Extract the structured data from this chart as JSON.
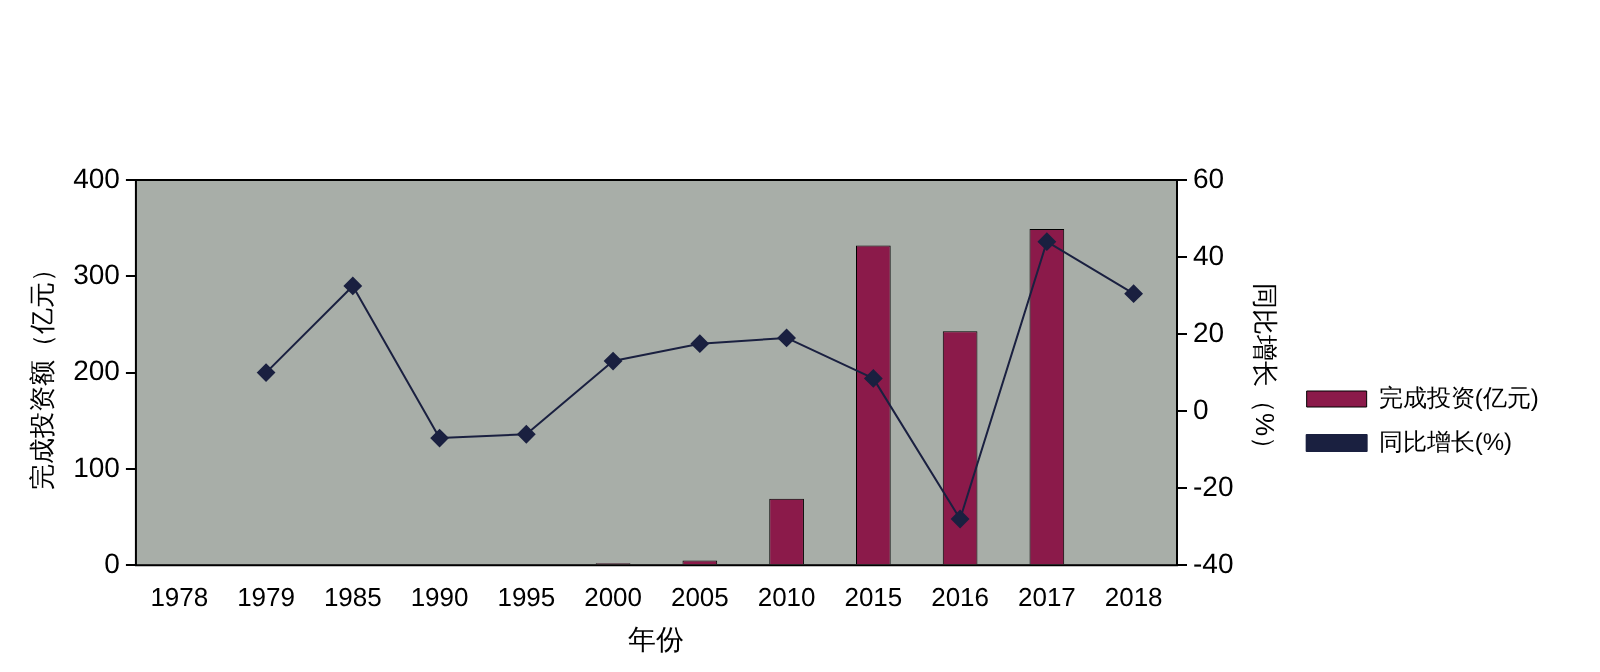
{
  "chart_data": {
    "type": "bar",
    "xlabel": "年份",
    "ylabel": "完成投资额（亿元）",
    "y2label": "同比增长（%）",
    "categories": [
      "1978",
      "1979",
      "1985",
      "1990",
      "1995",
      "2000",
      "2005",
      "2010",
      "2015",
      "2016",
      "2017",
      "2018"
    ],
    "series": [
      {
        "name": "完成投资(亿元)",
        "color": "#8b1a4a",
        "values": [
          null,
          null,
          null,
          null,
          null,
          2,
          5,
          69,
          332,
          243,
          349,
          null
        ]
      },
      {
        "name": "同比增长(%)",
        "type": "line",
        "axis": "y2",
        "color": "#1a2040",
        "marker": "diamond",
        "values": [
          null,
          10,
          32.5,
          -7,
          -6,
          13,
          17.5,
          19,
          8.5,
          -28,
          44,
          30.5
        ]
      }
    ],
    "ylim": [
      0,
      400
    ],
    "yticks": [
      0,
      100,
      200,
      300,
      400
    ],
    "y2lim": [
      -40,
      60
    ],
    "y2ticks": [
      -40,
      -20,
      0,
      20,
      40,
      60
    ],
    "grid": false,
    "legend": "right"
  }
}
